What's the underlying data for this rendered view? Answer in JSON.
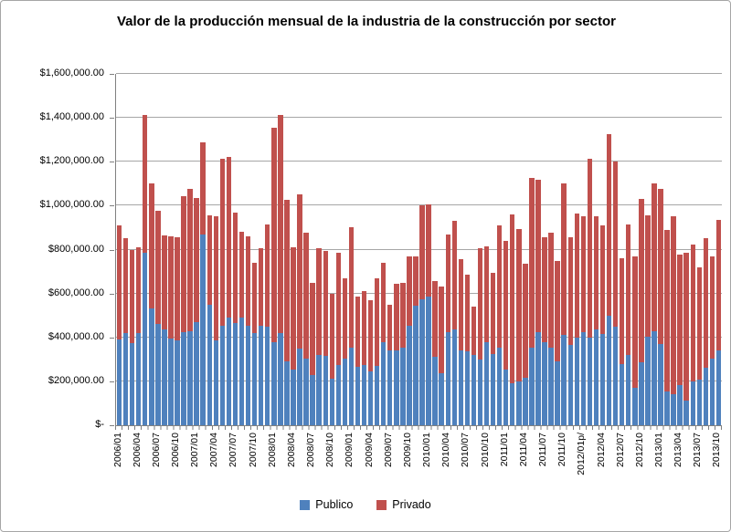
{
  "chart_data": {
    "type": "bar",
    "stacked": true,
    "title": "Valor de la producción mensual de la industria de la construcción por sector",
    "grid": true,
    "legend_position": "bottom",
    "ylim": [
      0,
      1600000
    ],
    "y_tick_step": 200000,
    "y_tick_labels": [
      "$-",
      "$200,000.00",
      "$400,000.00",
      "$600,000.00",
      "$800,000.00",
      "$1,000,000.00",
      "$1,200,000.00",
      "$1,400,000.00",
      "$1,600,000.00"
    ],
    "x_tick_every": 3,
    "categories": [
      "2006/01",
      "2006/02",
      "2006/03",
      "2006/04",
      "2006/05",
      "2006/06",
      "2006/07",
      "2006/08",
      "2006/09",
      "2006/10",
      "2006/11",
      "2006/12",
      "2007/01",
      "2007/02",
      "2007/03",
      "2007/04",
      "2007/05",
      "2007/06",
      "2007/07",
      "2007/08",
      "2007/09",
      "2007/10",
      "2007/11",
      "2007/12",
      "2008/01",
      "2008/02",
      "2008/03",
      "2008/04",
      "2008/05",
      "2008/06",
      "2008/07",
      "2008/08",
      "2008/09",
      "2008/10",
      "2008/11",
      "2008/12",
      "2009/01",
      "2009/02",
      "2009/03",
      "2009/04",
      "2009/05",
      "2009/06",
      "2009/07",
      "2009/08",
      "2009/09",
      "2009/10",
      "2009/11",
      "2009/12",
      "2010/01",
      "2010/02",
      "2010/03",
      "2010/04",
      "2010/05",
      "2010/06",
      "2010/07",
      "2010/08",
      "2010/09",
      "2010/10",
      "2010/11",
      "2010/12",
      "2011/01",
      "2011/02",
      "2011/03",
      "2011/04",
      "2011/05",
      "2011/06",
      "2011/07",
      "2011/08",
      "2011/09",
      "2011/10",
      "2011/11",
      "2011/12",
      "2012/01p/",
      "2012/02",
      "2012/03",
      "2012/04",
      "2012/05",
      "2012/06",
      "2012/07",
      "2012/08",
      "2012/09",
      "2012/10",
      "2012/11",
      "2012/12",
      "2013/01",
      "2013/02",
      "2013/03",
      "2013/04",
      "2013/05",
      "2013/06",
      "2013/07",
      "2013/08",
      "2013/09",
      "2013/10"
    ],
    "series": [
      {
        "name": "Publico",
        "color": "#4F81BD",
        "values": [
          390000,
          420000,
          375000,
          420000,
          785000,
          530000,
          460000,
          435000,
          395000,
          385000,
          425000,
          430000,
          470000,
          870000,
          550000,
          385000,
          455000,
          490000,
          465000,
          490000,
          455000,
          420000,
          455000,
          450000,
          380000,
          420000,
          290000,
          255000,
          350000,
          305000,
          230000,
          320000,
          315000,
          210000,
          275000,
          305000,
          355000,
          265000,
          275000,
          245000,
          270000,
          380000,
          340000,
          340000,
          355000,
          455000,
          545000,
          575000,
          585000,
          310000,
          235000,
          425000,
          435000,
          340000,
          335000,
          320000,
          300000,
          380000,
          325000,
          355000,
          255000,
          190000,
          200000,
          215000,
          355000,
          425000,
          380000,
          355000,
          290000,
          410000,
          365000,
          400000,
          425000,
          400000,
          435000,
          415000,
          500000,
          450000,
          280000,
          320000,
          170000,
          285000,
          405000,
          430000,
          372000,
          152000,
          143000,
          184000,
          111000,
          201000,
          208000,
          263000,
          305000,
          342000
        ]
      },
      {
        "name": "Privado",
        "color": "#C0504D",
        "values": [
          520000,
          430000,
          425000,
          390000,
          630000,
          570000,
          515000,
          430000,
          465000,
          470000,
          620000,
          645000,
          565000,
          420000,
          405000,
          565000,
          760000,
          730000,
          505000,
          390000,
          405000,
          320000,
          350000,
          465000,
          975000,
          995000,
          735000,
          555000,
          700000,
          570000,
          420000,
          485000,
          480000,
          390000,
          510000,
          365000,
          545000,
          320000,
          335000,
          325000,
          400000,
          360000,
          210000,
          305000,
          295000,
          315000,
          225000,
          425000,
          420000,
          345000,
          395000,
          445000,
          495000,
          415000,
          350000,
          220000,
          505000,
          435000,
          370000,
          555000,
          585000,
          770000,
          695000,
          520000,
          770000,
          695000,
          475000,
          520000,
          460000,
          690000,
          490000,
          565000,
          525000,
          815000,
          515000,
          495000,
          825000,
          750000,
          480000,
          595000,
          600000,
          745000,
          550000,
          670000,
          703000,
          736000,
          807000,
          592000,
          675000,
          624000,
          512000,
          589000,
          465000,
          594000
        ]
      }
    ]
  },
  "legend": {
    "items": [
      {
        "label": "Publico",
        "color": "#4F81BD"
      },
      {
        "label": "Privado",
        "color": "#C0504D"
      }
    ]
  }
}
